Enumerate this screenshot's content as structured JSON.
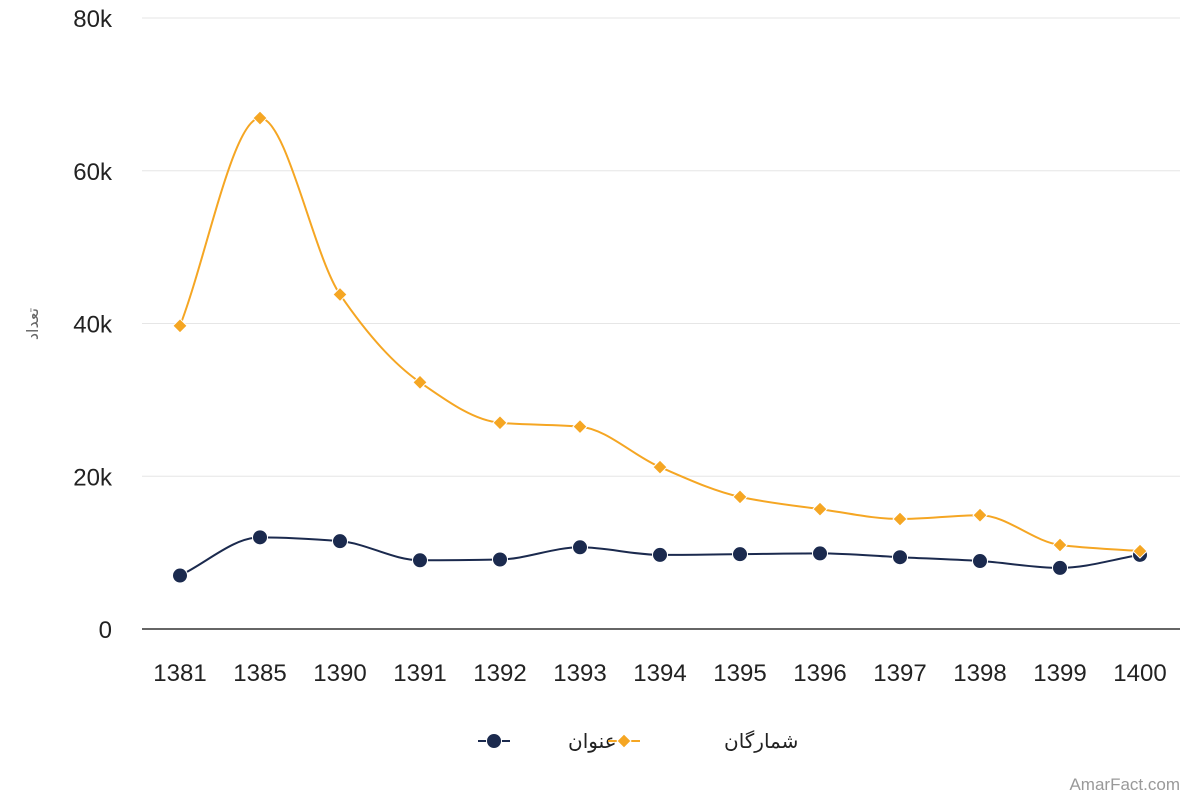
{
  "chart_data": {
    "type": "line",
    "title": "",
    "xlabel": "",
    "ylabel": "تعداد",
    "categories": [
      "1381",
      "1385",
      "1390",
      "1391",
      "1392",
      "1393",
      "1394",
      "1395",
      "1396",
      "1397",
      "1398",
      "1399",
      "1400"
    ],
    "ylim": [
      0,
      80000
    ],
    "yticks": [
      0,
      20000,
      40000,
      60000,
      80000
    ],
    "ytick_labels": [
      "0",
      "20k",
      "40k",
      "60k",
      "80k"
    ],
    "grid": true,
    "legend_position": "bottom-center",
    "series": [
      {
        "name": "عنوان",
        "color": "#1b2a4e",
        "marker": "circle",
        "values": [
          7000,
          12000,
          11500,
          9000,
          9100,
          10700,
          9700,
          9800,
          9900,
          9400,
          8900,
          8000,
          9700
        ]
      },
      {
        "name": "شمارگان",
        "color": "#f5a623",
        "marker": "diamond",
        "values": [
          39700,
          66900,
          43800,
          32300,
          27000,
          26500,
          21200,
          17300,
          15700,
          14400,
          14900,
          11000,
          10200
        ]
      }
    ]
  },
  "watermark": "AmarFact.com"
}
